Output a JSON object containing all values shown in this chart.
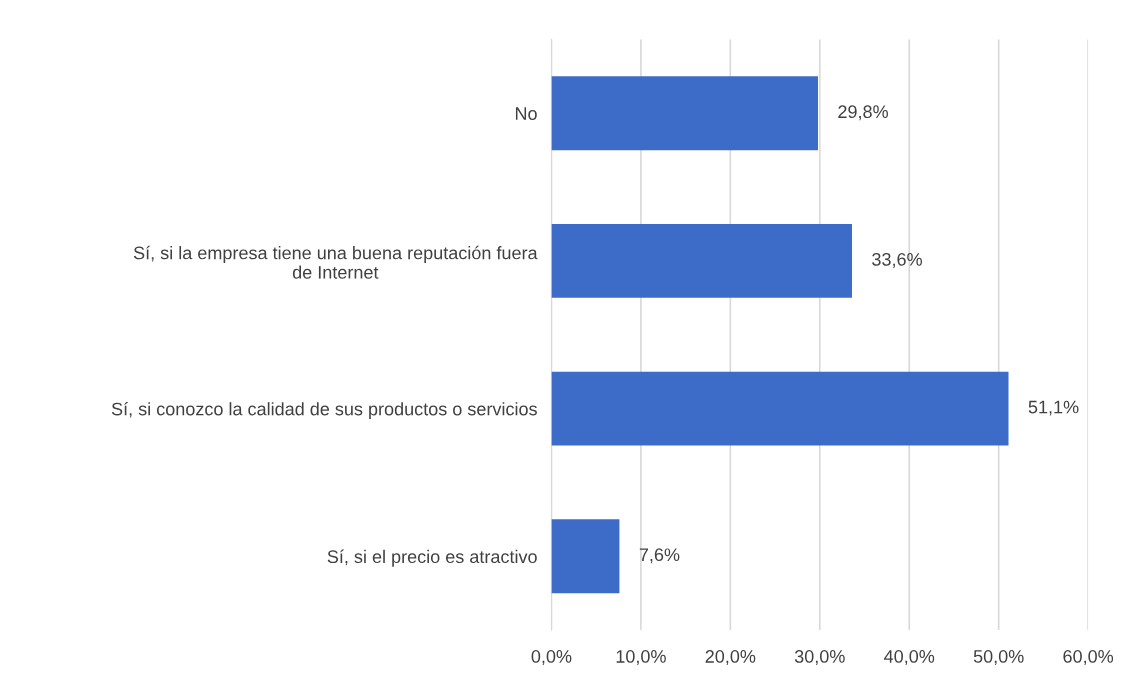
{
  "chart_data": {
    "type": "bar",
    "orientation": "horizontal",
    "categories": [
      "No",
      "Sí, si la empresa tiene una buena reputación fuera\nde Internet",
      "Sí, si conozco la calidad de sus productos o servicios",
      "Sí, si el precio es atractivo"
    ],
    "values": [
      29.8,
      33.6,
      51.1,
      7.6
    ],
    "value_labels": [
      "29,8%",
      "33,6%",
      "51,1%",
      "7,6%"
    ],
    "color": "#3c6cc8",
    "xlim": [
      0,
      60
    ],
    "xticks": [
      {
        "value": 0,
        "label": "0,0%"
      },
      {
        "value": 10,
        "label": "10,0%"
      },
      {
        "value": 20,
        "label": "20,0%"
      },
      {
        "value": 30,
        "label": "30,0%"
      },
      {
        "value": 40,
        "label": "40,0%"
      },
      {
        "value": 50,
        "label": "50,0%"
      },
      {
        "value": 60,
        "label": "60,0%"
      }
    ],
    "grid": "x"
  }
}
